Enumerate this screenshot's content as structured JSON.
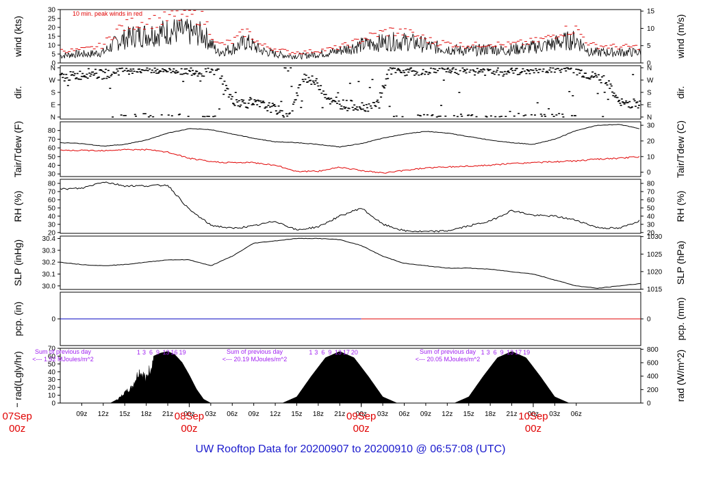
{
  "footer": {
    "title": "UW Rooftop Data for 20200907  to  20200910 @ 06:57:08  (UTC)"
  },
  "colors": {
    "main": "#000000",
    "peak": "#e00000",
    "dew": "#e00000",
    "precip_before": "#0000c0",
    "precip_after": "#e00000",
    "rad_note": "#a020f0",
    "date_label": "#e00000",
    "footer": "#1a1acd"
  },
  "time_axis": {
    "hour_ticks": [
      "09z",
      "12z",
      "15z",
      "18z",
      "21z",
      "00z",
      "03z",
      "06z",
      "09z",
      "12z",
      "15z",
      "18z",
      "21z",
      "00z",
      "03z",
      "06z",
      "09z",
      "12z",
      "15z",
      "18z",
      "21z",
      "00z",
      "03z",
      "06z"
    ],
    "day_labels": [
      {
        "date": "07Sep",
        "hour": "00z"
      },
      {
        "date": "08Sep",
        "hour": "00z"
      },
      {
        "date": "09Sep",
        "hour": "00z"
      },
      {
        "date": "10Sep",
        "hour": "00z"
      }
    ]
  },
  "chart_data": [
    {
      "type": "line",
      "panel": "wind",
      "ylabel_left": "wind (kts)",
      "ylabel_right": "wind (m/s)",
      "yticks_left": [
        0,
        5,
        10,
        15,
        20,
        25,
        30
      ],
      "yticks_right": [
        0,
        5,
        10,
        15
      ],
      "ylim": [
        0,
        30
      ],
      "annotation": "10 min. peak winds in red",
      "series": [
        {
          "name": "10 min. peak winds",
          "x_hours": [
            6,
            8,
            10,
            12,
            14,
            16,
            18,
            20,
            22,
            24,
            26,
            28,
            30,
            32,
            34,
            36,
            38,
            40,
            42,
            44,
            46,
            48,
            50,
            52,
            54,
            56,
            58,
            60,
            62,
            64,
            66,
            68,
            70,
            72,
            74,
            76,
            78,
            80,
            84
          ],
          "values": [
            7,
            7,
            8,
            10,
            19,
            22,
            23,
            24,
            26,
            27,
            25,
            10,
            12,
            18,
            10,
            8,
            6,
            6,
            7,
            8,
            10,
            13,
            16,
            18,
            17,
            15,
            12,
            11,
            10,
            10,
            11,
            10,
            11,
            12,
            14,
            18,
            19,
            10,
            9
          ]
        },
        {
          "values": [
            4,
            5,
            5,
            6,
            12,
            15,
            16,
            17,
            18,
            17,
            16,
            6,
            8,
            12,
            7,
            5,
            4,
            4,
            5,
            6,
            8,
            10,
            11,
            12,
            12,
            11,
            9,
            8,
            7,
            7,
            8,
            7,
            8,
            9,
            10,
            12,
            13,
            6,
            6
          ]
        }
      ]
    },
    {
      "type": "scatter",
      "panel": "direction",
      "ylabel_left": "dir.",
      "ylabel_right": "dir.",
      "yticks_left": [
        "N",
        "W",
        "S",
        "E",
        "N"
      ],
      "yticks_right": [
        "N",
        "W",
        "S",
        "E",
        "N"
      ],
      "series": [
        {
          "x_hours": [
            6,
            8,
            10,
            12,
            14,
            16,
            18,
            20,
            22,
            24,
            26,
            28,
            30,
            32,
            34,
            36,
            38,
            40,
            42,
            44,
            46,
            48,
            50,
            52,
            54,
            56,
            58,
            60,
            62,
            64,
            66,
            68,
            70,
            72,
            74,
            76,
            78,
            80,
            82,
            84
          ],
          "values": [
            290,
            300,
            320,
            310,
            340,
            350,
            350,
            345,
            350,
            340,
            330,
            340,
            120,
            100,
            90,
            60,
            0,
            300,
            240,
            100,
            90,
            80,
            70,
            340,
            330,
            340,
            350,
            350,
            345,
            340,
            335,
            330,
            340,
            345,
            350,
            355,
            340,
            300,
            280,
            100
          ]
        }
      ]
    },
    {
      "type": "line",
      "panel": "temperature",
      "ylabel_left": "Tair/Tdew (F)",
      "ylabel_right": "Tair/Tdew (C)",
      "yticks_left": [
        30,
        40,
        50,
        60,
        70,
        80
      ],
      "yticks_right": [
        0,
        10,
        20,
        30
      ],
      "ylim": [
        27,
        90
      ],
      "series": [
        {
          "x_hours": [
            6,
            9,
            12,
            15,
            18,
            21,
            24,
            27,
            30,
            33,
            36,
            39,
            42,
            45,
            48,
            51,
            54,
            57,
            60,
            63,
            66,
            69,
            72,
            75,
            78,
            81,
            84,
            87
          ],
          "values": [
            66,
            65,
            62,
            64,
            69,
            77,
            82,
            81,
            76,
            71,
            67,
            66,
            64,
            61,
            65,
            71,
            76,
            79,
            77,
            73,
            69,
            66,
            64,
            70,
            80,
            86,
            87,
            82
          ]
        },
        {
          "x_hours": [
            6,
            9,
            12,
            15,
            18,
            21,
            24,
            27,
            30,
            33,
            36,
            39,
            42,
            45,
            48,
            51,
            54,
            57,
            60,
            63,
            66,
            69,
            72,
            75,
            78,
            81,
            84,
            87
          ],
          "values": [
            57,
            57,
            57,
            58,
            58,
            55,
            48,
            44,
            43,
            43,
            40,
            33,
            33,
            38,
            34,
            31,
            34,
            37,
            38,
            39,
            40,
            42,
            43,
            44,
            45,
            47,
            48,
            50
          ]
        }
      ]
    },
    {
      "type": "line",
      "panel": "humidity",
      "ylabel_left": "RH (%)",
      "ylabel_right": "RH (%)",
      "yticks_left": [
        20,
        30,
        40,
        50,
        60,
        70,
        80
      ],
      "yticks_right": [
        20,
        30,
        40,
        50,
        60,
        70,
        80
      ],
      "ylim": [
        19,
        85
      ],
      "series": [
        {
          "x_hours": [
            6,
            9,
            12,
            15,
            18,
            21,
            24,
            27,
            30,
            33,
            36,
            39,
            42,
            45,
            48,
            51,
            54,
            57,
            60,
            63,
            66,
            69,
            72,
            75,
            78,
            81,
            84,
            87
          ],
          "values": [
            73,
            74,
            82,
            77,
            77,
            78,
            48,
            29,
            25,
            28,
            34,
            23,
            27,
            40,
            50,
            30,
            22,
            21,
            22,
            28,
            34,
            47,
            41,
            40,
            35,
            26,
            25,
            35
          ]
        }
      ]
    },
    {
      "type": "line",
      "panel": "pressure",
      "ylabel_left": "SLP (inHg)",
      "ylabel_right": "SLP (hPa)",
      "yticks_left": [
        30.0,
        30.1,
        30.2,
        30.3,
        30.4
      ],
      "yticks_right": [
        1015,
        1020,
        1025,
        1030
      ],
      "ylim": [
        29.97,
        30.42
      ],
      "series": [
        {
          "x_hours": [
            6,
            9,
            12,
            15,
            18,
            21,
            24,
            27,
            30,
            33,
            36,
            39,
            42,
            45,
            48,
            51,
            54,
            57,
            60,
            63,
            66,
            69,
            72,
            75,
            78,
            81,
            84,
            87
          ],
          "values": [
            30.2,
            30.18,
            30.17,
            30.18,
            30.2,
            30.22,
            30.22,
            30.17,
            30.25,
            30.36,
            30.38,
            30.4,
            30.4,
            30.39,
            30.34,
            30.25,
            30.19,
            30.17,
            30.15,
            30.15,
            30.14,
            30.12,
            30.1,
            30.05,
            30.0,
            29.98,
            30.0,
            30.02
          ]
        }
      ]
    },
    {
      "type": "line",
      "panel": "precipitation",
      "ylabel_left": "pcp. (in)",
      "ylabel_right": "pcp. (mm)",
      "yticks_left": [
        0
      ],
      "yticks_right": [
        0
      ],
      "series": [
        {
          "x_hours": [
            6,
            87
          ],
          "values": [
            0,
            0
          ]
        }
      ]
    },
    {
      "type": "area",
      "panel": "radiation",
      "ylabel_left": "rad(Lgly/hr)",
      "ylabel_right": "rad (W/m^2)",
      "yticks_left": [
        0,
        10,
        20,
        30,
        40,
        50,
        60,
        70
      ],
      "yticks_right": [
        0,
        200,
        400,
        600,
        800
      ],
      "ylim": [
        0,
        70
      ],
      "daily_notes": [
        {
          "line1": "Sum of previous day",
          "line2": "<--- 1.92 MJoules/m^2"
        },
        {
          "line1": "Sum of previous day",
          "line2": "<--- 20.19 MJoules/m^2"
        },
        {
          "line1": "Sum of previous day",
          "line2": "<--- 20.05 MJoules/m^2"
        }
      ],
      "hour_markers": [
        "1",
        "3",
        "6",
        "9",
        "13",
        "16",
        "19",
        "1",
        "3",
        "6",
        "9",
        "13",
        "17",
        "20",
        "1",
        "3",
        "6",
        "9",
        "13",
        "17",
        "19"
      ],
      "series": [
        {
          "x_hours": [
            13,
            14,
            15,
            16,
            17,
            18,
            19,
            20,
            21,
            22,
            23,
            24,
            25,
            26,
            27,
            37,
            39,
            41,
            43,
            45,
            47,
            49,
            51,
            53,
            55,
            61,
            63,
            65,
            67,
            69,
            71,
            73,
            75,
            77,
            79
          ],
          "values": [
            0,
            5,
            15,
            22,
            45,
            36,
            60,
            64,
            66,
            62,
            52,
            36,
            18,
            5,
            0,
            0,
            8,
            34,
            58,
            66,
            58,
            34,
            8,
            0,
            0,
            0,
            8,
            34,
            58,
            66,
            58,
            34,
            8,
            0,
            0
          ]
        }
      ]
    }
  ]
}
